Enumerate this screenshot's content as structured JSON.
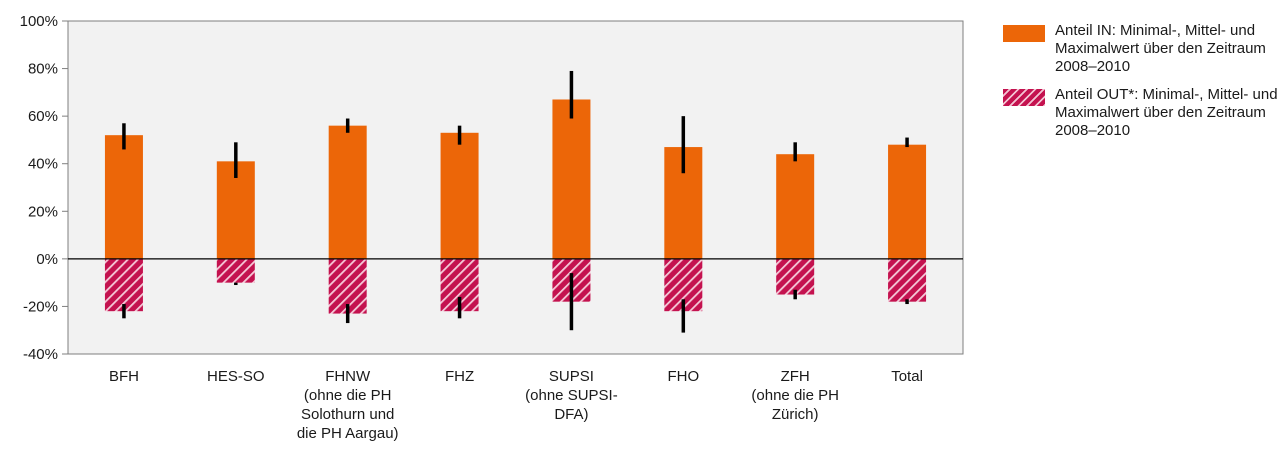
{
  "chart_data": {
    "type": "bar",
    "categories": [
      [
        "BFH"
      ],
      [
        "HES-SO"
      ],
      [
        "FHNW",
        "(ohne die PH",
        "Solothurn und",
        "die PH Aargau)"
      ],
      [
        "FHZ"
      ],
      [
        "SUPSI",
        "(ohne SUPSI-",
        "DFA)"
      ],
      [
        "FHO"
      ],
      [
        "ZFH",
        "(ohne die PH",
        "Zürich)"
      ],
      [
        "Total"
      ]
    ],
    "series": [
      {
        "name": "Anteil IN: Minimal-, Mittel- und Maximalwert über den Zeitraum 2008–2010",
        "values": [
          52,
          41,
          56,
          53,
          67,
          47,
          44,
          48
        ],
        "min": [
          46,
          34,
          53,
          48,
          59,
          36,
          41,
          47
        ],
        "max": [
          57,
          49,
          59,
          56,
          79,
          60,
          49,
          51
        ],
        "color": "#ec6608",
        "pattern": "solid"
      },
      {
        "name": "Anteil OUT*: Minimal-, Mittel- und Maximalwert über den Zeitraum 2008–2010",
        "values": [
          -22,
          -10,
          -23,
          -22,
          -18,
          -22,
          -15,
          -18
        ],
        "min": [
          -25,
          -11,
          -27,
          -25,
          -30,
          -31,
          -17,
          -19
        ],
        "max": [
          -19,
          -10,
          -19,
          -16,
          -6,
          -17,
          -13,
          -17
        ],
        "color": "#c4124f",
        "pattern": "hatched"
      }
    ],
    "yticks": [
      "100%",
      "80%",
      "60%",
      "40%",
      "20%",
      "0%",
      "-20%",
      "-40%"
    ],
    "ylim": [
      -40,
      100
    ],
    "plot_background": "#f2f2f2",
    "errorbar_color": "#000000",
    "legend_position": "right"
  }
}
